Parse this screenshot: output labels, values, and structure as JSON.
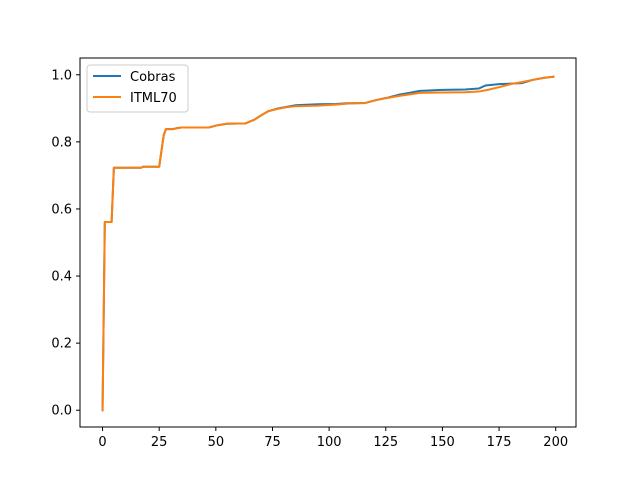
{
  "chart_data": {
    "type": "line",
    "title": "",
    "xlabel": "",
    "ylabel": "",
    "xlim": [
      -9.95,
      208.95
    ],
    "ylim": [
      -0.05,
      1.05
    ],
    "xticks": [
      0,
      25,
      50,
      75,
      100,
      125,
      150,
      175,
      200
    ],
    "yticks": [
      0.0,
      0.2,
      0.4,
      0.6,
      0.8,
      1.0
    ],
    "xtick_labels": [
      "0",
      "25",
      "50",
      "75",
      "100",
      "125",
      "150",
      "175",
      "200"
    ],
    "ytick_labels": [
      "0.0",
      "0.2",
      "0.4",
      "0.6",
      "0.8",
      "1.0"
    ],
    "grid": false,
    "legend_position": "top-left",
    "series": [
      {
        "name": "Cobras",
        "color": "#1f77b4",
        "points": [
          [
            0,
            0.0
          ],
          [
            1,
            0.561
          ],
          [
            4,
            0.561
          ],
          [
            5,
            0.723
          ],
          [
            17,
            0.723
          ],
          [
            18,
            0.726
          ],
          [
            25,
            0.726
          ],
          [
            27,
            0.82
          ],
          [
            28,
            0.838
          ],
          [
            31,
            0.838
          ],
          [
            33,
            0.841
          ],
          [
            35,
            0.843
          ],
          [
            47,
            0.843
          ],
          [
            51,
            0.85
          ],
          [
            55,
            0.854
          ],
          [
            63,
            0.855
          ],
          [
            67,
            0.866
          ],
          [
            70,
            0.879
          ],
          [
            73,
            0.891
          ],
          [
            77,
            0.899
          ],
          [
            81,
            0.904
          ],
          [
            85,
            0.909
          ],
          [
            95,
            0.912
          ],
          [
            103,
            0.913
          ],
          [
            108,
            0.915
          ],
          [
            116,
            0.916
          ],
          [
            121,
            0.925
          ],
          [
            126,
            0.932
          ],
          [
            131,
            0.941
          ],
          [
            136,
            0.947
          ],
          [
            140,
            0.952
          ],
          [
            150,
            0.955
          ],
          [
            160,
            0.956
          ],
          [
            166,
            0.959
          ],
          [
            169,
            0.968
          ],
          [
            175,
            0.972
          ],
          [
            185,
            0.975
          ],
          [
            190,
            0.985
          ],
          [
            195,
            0.991
          ],
          [
            199,
            0.994
          ]
        ]
      },
      {
        "name": "ITML70",
        "color": "#ff7f0e",
        "points": [
          [
            0,
            0.0
          ],
          [
            1,
            0.561
          ],
          [
            4,
            0.561
          ],
          [
            5,
            0.723
          ],
          [
            17,
            0.723
          ],
          [
            18,
            0.726
          ],
          [
            25,
            0.726
          ],
          [
            27,
            0.82
          ],
          [
            28,
            0.838
          ],
          [
            31,
            0.838
          ],
          [
            33,
            0.841
          ],
          [
            35,
            0.843
          ],
          [
            47,
            0.843
          ],
          [
            51,
            0.85
          ],
          [
            55,
            0.854
          ],
          [
            63,
            0.855
          ],
          [
            67,
            0.866
          ],
          [
            70,
            0.879
          ],
          [
            73,
            0.891
          ],
          [
            77,
            0.898
          ],
          [
            81,
            0.903
          ],
          [
            85,
            0.906
          ],
          [
            95,
            0.908
          ],
          [
            103,
            0.911
          ],
          [
            108,
            0.914
          ],
          [
            116,
            0.916
          ],
          [
            121,
            0.925
          ],
          [
            126,
            0.931
          ],
          [
            131,
            0.937
          ],
          [
            136,
            0.942
          ],
          [
            140,
            0.946
          ],
          [
            150,
            0.947
          ],
          [
            160,
            0.948
          ],
          [
            166,
            0.95
          ],
          [
            170,
            0.955
          ],
          [
            175,
            0.963
          ],
          [
            180,
            0.972
          ],
          [
            185,
            0.978
          ],
          [
            190,
            0.985
          ],
          [
            195,
            0.991
          ],
          [
            199,
            0.994
          ]
        ]
      }
    ]
  }
}
